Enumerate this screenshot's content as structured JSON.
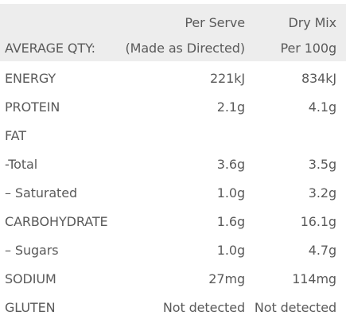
{
  "header": {
    "col1_line2": "AVERAGE QTY:",
    "col2_line1": "Per Serve",
    "col2_line2": "(Made as Directed)",
    "col3_line1": "Dry Mix",
    "col3_line2": "Per 100g"
  },
  "rows": [
    {
      "label": "ENERGY",
      "serve": "221kJ",
      "dry": "834kJ"
    },
    {
      "label": "PROTEIN",
      "serve": "2.1g",
      "dry": "4.1g"
    },
    {
      "label": "FAT",
      "serve": "",
      "dry": ""
    },
    {
      "label": "-Total",
      "serve": "3.6g",
      "dry": "3.5g"
    },
    {
      "label": "– Saturated",
      "serve": "1.0g",
      "dry": "3.2g"
    },
    {
      "label": "CARBOHYDRATE",
      "serve": "1.6g",
      "dry": "16.1g"
    },
    {
      "label": "– Sugars",
      "serve": "1.0g",
      "dry": "4.7g"
    },
    {
      "label": "SODIUM",
      "serve": "27mg",
      "dry": "114mg"
    },
    {
      "label": "GLUTEN",
      "serve": "Not detected",
      "dry": "Not detected"
    }
  ]
}
